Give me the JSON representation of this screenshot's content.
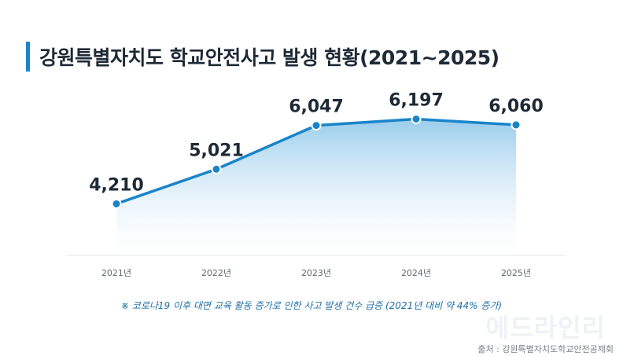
{
  "title": "강원특별자치도 학교안전사고 발생 현황(2021~2025)",
  "note": "※ 코로나19 이후 대면 교육 활동 증가로 인한 사고 발생 건수 급증 (2021년 대비 약 44% 증가)",
  "watermark": "에드라인리",
  "source": "출처 : 강원특별자치도학교안전공제회",
  "colors": {
    "accent": "#1a84c9",
    "title_bar": "#1a84c9",
    "note": "#1f6fa6"
  },
  "chart_data": {
    "type": "area",
    "categories": [
      "2021년",
      "2022년",
      "2023년",
      "2024년",
      "2025년"
    ],
    "values": [
      4210,
      5021,
      6047,
      6197,
      6060
    ],
    "data_labels": [
      "4,210",
      "5,021",
      "6,047",
      "6,197",
      "6,060"
    ],
    "ylim": [
      3000,
      6500
    ],
    "grid": false,
    "legend": "none",
    "title": "강원특별자치도 학교안전사고 발생 현황(2021~2025)"
  }
}
